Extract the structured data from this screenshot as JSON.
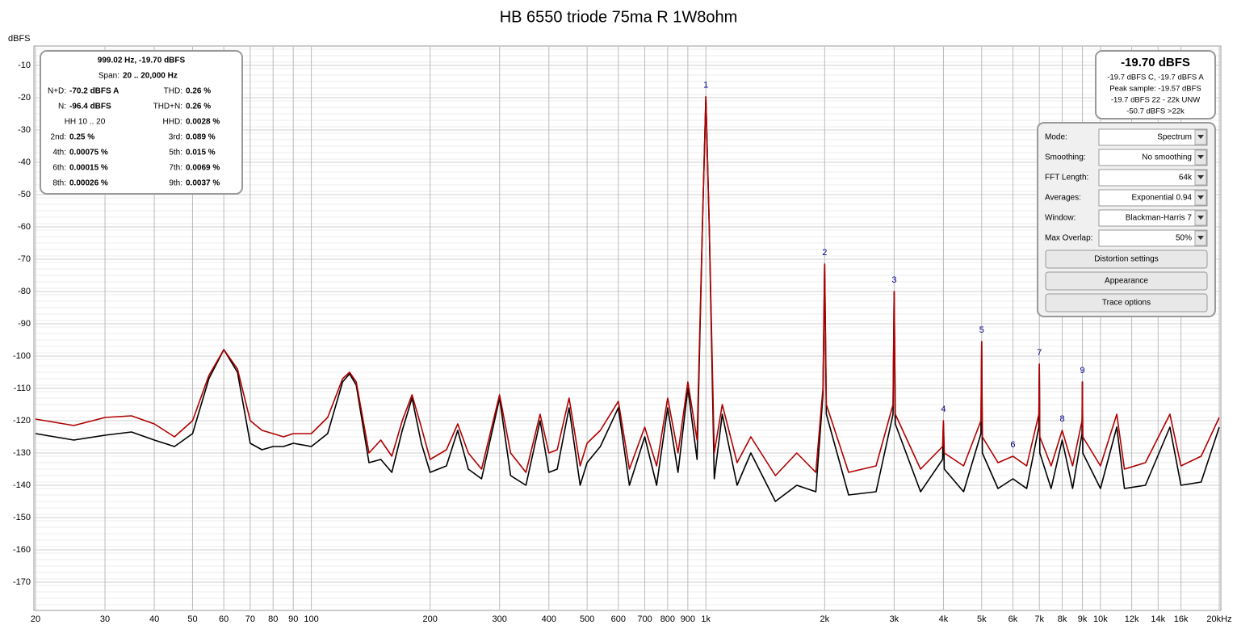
{
  "chart_data": {
    "type": "line",
    "title": "HB 6550 triode 75ma R 1W8ohm",
    "y_label": "dBFS",
    "x_scale": "log",
    "grid": true,
    "xlim": [
      20,
      20000
    ],
    "ylim": [
      -178.5,
      -4
    ],
    "xticks": [
      20,
      30,
      40,
      50,
      60,
      70,
      80,
      90,
      100,
      200,
      300,
      400,
      500,
      600,
      700,
      800,
      900,
      {
        "value": 1000,
        "label": "1k"
      },
      {
        "value": 2000,
        "label": "2k"
      },
      {
        "value": 3000,
        "label": "3k"
      },
      {
        "value": 4000,
        "label": "4k"
      },
      {
        "value": 5000,
        "label": "5k"
      },
      {
        "value": 6000,
        "label": "6k"
      },
      {
        "value": 7000,
        "label": "7k"
      },
      {
        "value": 8000,
        "label": "8k"
      },
      {
        "value": 9000,
        "label": "9k"
      },
      {
        "value": 10000,
        "label": "10k"
      },
      {
        "value": 12000,
        "label": "12k"
      },
      {
        "value": 14000,
        "label": "14k"
      },
      {
        "value": 16000,
        "label": "16k"
      },
      {
        "value": 20000,
        "label": "20kHz"
      }
    ],
    "yticks": [
      -10,
      -20,
      -30,
      -40,
      -50,
      -60,
      -70,
      -80,
      -90,
      -100,
      -110,
      -120,
      -130,
      -140,
      -150,
      -160,
      -170
    ],
    "x": [
      20,
      25,
      30,
      35,
      40,
      45,
      50,
      55,
      60,
      65,
      70,
      75,
      80,
      85,
      90,
      100,
      110,
      120,
      125,
      130,
      140,
      150,
      160,
      170,
      180,
      190,
      200,
      220,
      235,
      250,
      270,
      300,
      320,
      350,
      380,
      400,
      420,
      450,
      480,
      500,
      540,
      600,
      640,
      700,
      750,
      800,
      850,
      900,
      950,
      980,
      1000,
      1020,
      1050,
      1100,
      1200,
      1300,
      1500,
      1700,
      1900,
      1980,
      2000,
      2020,
      2300,
      2700,
      2980,
      3000,
      3020,
      3500,
      3980,
      4000,
      4020,
      4500,
      4980,
      5000,
      5020,
      5500,
      6000,
      6500,
      6980,
      7000,
      7020,
      7500,
      8000,
      8500,
      8980,
      9000,
      9020,
      10000,
      11000,
      11500,
      13000,
      15000,
      16000,
      18000,
      20000
    ],
    "series": [
      {
        "color": "#000000",
        "values": [
          -124,
          -126,
          -124.5,
          -123.5,
          -126,
          -128,
          -124,
          -107,
          -98,
          -105,
          -127,
          -129,
          -128,
          -128,
          -127,
          -128,
          -124,
          -108,
          -105.5,
          -109,
          -133,
          -132,
          -136,
          -123,
          -113,
          -127,
          -136,
          -134,
          -123,
          -135,
          -138,
          -113,
          -137,
          -140,
          -120,
          -136,
          -135,
          -116,
          -140,
          -133,
          -128,
          -116,
          -140,
          -125,
          -140,
          -116,
          -136,
          -110,
          -132,
          -60,
          -19.7,
          -60,
          -138,
          -118,
          -140,
          -130,
          -145,
          -140,
          -142,
          -112,
          -71.5,
          -118,
          -143,
          -142,
          -118,
          -80,
          -121,
          -142,
          -132,
          -121,
          -135,
          -142,
          -124,
          -95.5,
          -130,
          -141,
          -138,
          -141,
          -122,
          -102.5,
          -130,
          -141,
          -126,
          -141,
          -124,
          -108,
          -130,
          -141,
          -122,
          -141,
          -140,
          -122,
          -140,
          -139,
          -122
        ]
      },
      {
        "color": "#b00000",
        "values": [
          -119.5,
          -121.5,
          -119,
          -118.5,
          -121,
          -125,
          -120,
          -106,
          -98,
          -104,
          -120,
          -123,
          -124,
          -125,
          -124,
          -124,
          -119,
          -107,
          -105,
          -108,
          -130,
          -126,
          -131,
          -120,
          -112,
          -122,
          -132,
          -129,
          -121,
          -130,
          -135,
          -112,
          -130,
          -136,
          -118,
          -130,
          -129,
          -113,
          -134,
          -127,
          -123,
          -114,
          -135,
          -122,
          -134,
          -113,
          -130,
          -108,
          -126,
          -60,
          -19.7,
          -60,
          -130,
          -115,
          -133,
          -125,
          -137,
          -130,
          -136,
          -110,
          -71.5,
          -115,
          -136,
          -134,
          -115,
          -80,
          -118,
          -135,
          -128,
          -120,
          -130,
          -134,
          -120,
          -95.5,
          -125,
          -133,
          -131,
          -134,
          -118,
          -102.5,
          -125,
          -134,
          -123,
          -134,
          -120,
          -108,
          -125,
          -134,
          -118,
          -135,
          -133,
          -118,
          -134,
          -131,
          -119
        ]
      }
    ],
    "annotations": [
      {
        "text": "1",
        "x": 1000,
        "y": -19.7
      },
      {
        "text": "2",
        "x": 2000,
        "y": -71.5
      },
      {
        "text": "3",
        "x": 3000,
        "y": -80
      },
      {
        "text": "4",
        "x": 4000,
        "y": -120
      },
      {
        "text": "5",
        "x": 5000,
        "y": -95.5
      },
      {
        "text": "6",
        "x": 6000,
        "y": -131
      },
      {
        "text": "7",
        "x": 7000,
        "y": -102.5
      },
      {
        "text": "8",
        "x": 8000,
        "y": -123
      },
      {
        "text": "9",
        "x": 9000,
        "y": -108
      }
    ]
  },
  "readout": {
    "heading": "999.02 Hz, -19.70 dBFS",
    "span": {
      "label": "Span:",
      "value": "20 .. 20,000 Hz"
    },
    "rows": [
      [
        {
          "label": "N+D:",
          "value": "-70.2 dBFS A"
        },
        {
          "label": "THD:",
          "value": "0.26 %"
        }
      ],
      [
        {
          "label": "N:",
          "value": "-96.4 dBFS"
        },
        {
          "label": "THD+N:",
          "value": "0.26 %"
        }
      ],
      [
        {
          "label": "HH 10 .. 20"
        },
        {
          "label": "HHD:",
          "value": "0.0028 %"
        }
      ],
      [
        {
          "label": "2nd:",
          "value": "0.25 %"
        },
        {
          "label": "3rd:",
          "value": "0.089 %"
        }
      ],
      [
        {
          "label": "4th:",
          "value": "0.00075 %"
        },
        {
          "label": "5th:",
          "value": "0.015 %"
        }
      ],
      [
        {
          "label": "6th:",
          "value": "0.00015 %"
        },
        {
          "label": "7th:",
          "value": "0.0069 %"
        }
      ],
      [
        {
          "label": "8th:",
          "value": "0.00026 %"
        },
        {
          "label": "9th:",
          "value": "0.0037 %"
        }
      ]
    ]
  },
  "level_meter": {
    "level": "-19.70 dBFS",
    "lines": [
      "-19.7 dBFS C, -19.7 dBFS A",
      "Peak sample: -19.57 dBFS",
      "-19.7 dBFS 22 - 22k UNW",
      "-50.7 dBFS >22k"
    ]
  },
  "controls": {
    "fields": [
      {
        "label": "Mode:",
        "value": "Spectrum"
      },
      {
        "label": "Smoothing:",
        "value": "No  smoothing"
      },
      {
        "label": "FFT Length:",
        "value": "64k"
      },
      {
        "label": "Averages:",
        "value": "Exponential 0.94"
      },
      {
        "label": "Window:",
        "value": "Blackman-Harris 7"
      },
      {
        "label": "Max Overlap:",
        "value": "50%"
      }
    ],
    "buttons": [
      "Distortion settings",
      "Appearance",
      "Trace options"
    ]
  }
}
